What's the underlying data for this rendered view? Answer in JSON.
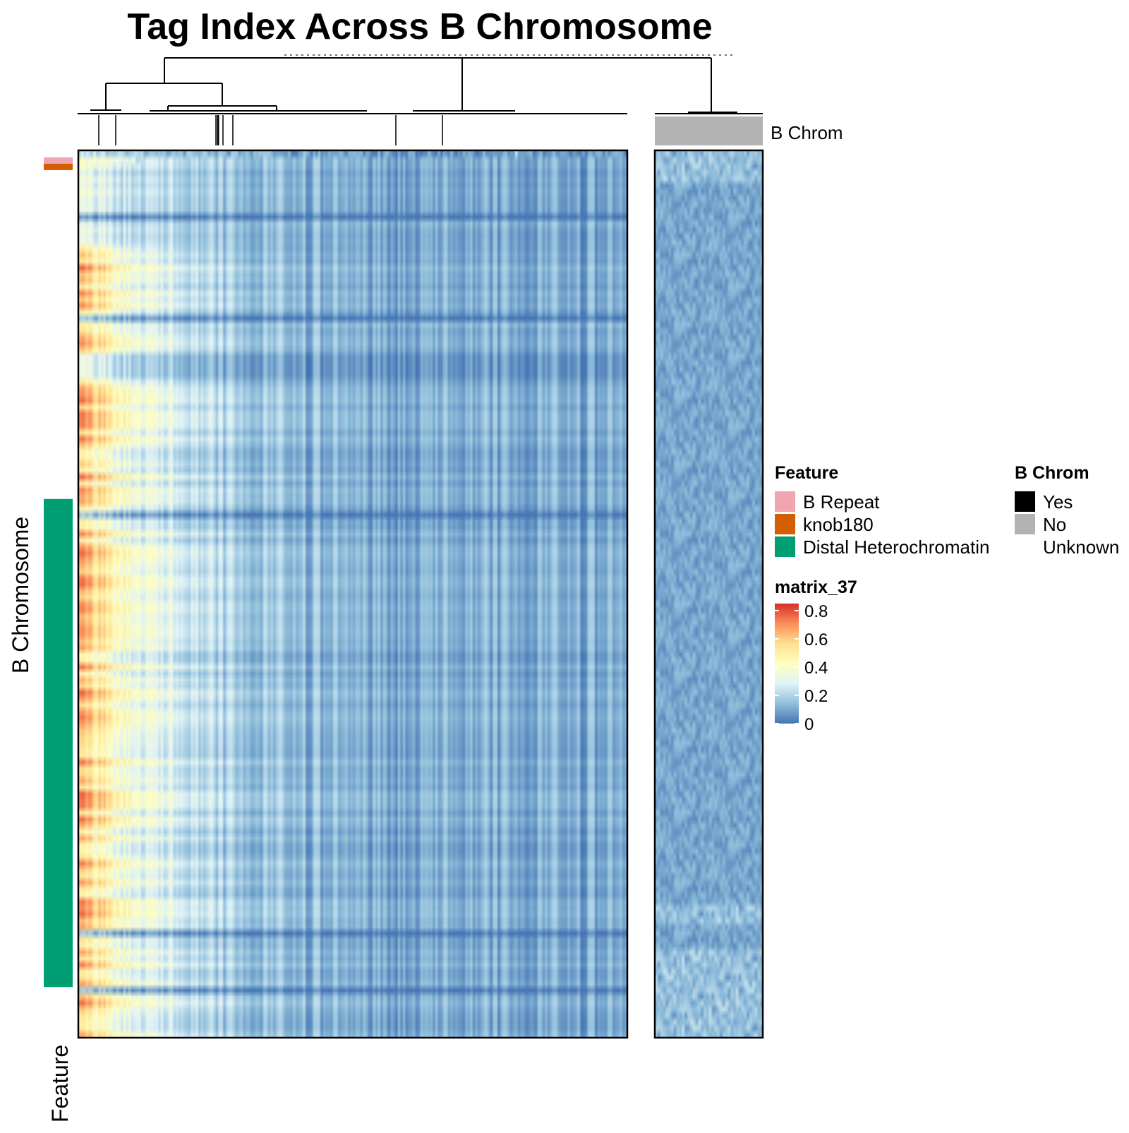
{
  "chart_data": {
    "type": "heatmap",
    "title": "Tag Index Across B Chromosome",
    "row_title": "B Chromosome",
    "row_annotation_name": "Feature",
    "column_annotation_name": "B Chrom",
    "feature_legend": {
      "title": "Feature",
      "entries": [
        {
          "label": "B Repeat",
          "color": "#F0A5B0"
        },
        {
          "label": "knob180",
          "color": "#D55E00"
        },
        {
          "label": "Distal Heterochromatin",
          "color": "#009E73"
        }
      ]
    },
    "bchrom_legend": {
      "title": "B Chrom",
      "entries": [
        {
          "label": "Yes",
          "color": "#000000"
        },
        {
          "label": "No",
          "color": "#B3B3B3"
        },
        {
          "label": "Unknown",
          "color": "#FFFFFF"
        }
      ]
    },
    "color_scale": {
      "title": "matrix_37",
      "ticks": [
        0.8,
        0.6,
        0.4,
        0.2,
        0
      ],
      "range": [
        0,
        0.85
      ],
      "colors": [
        "#4575B4",
        "#91BFDB",
        "#E0F3F8",
        "#FFFFBF",
        "#FEE090",
        "#FC8D59",
        "#D73027"
      ]
    },
    "panels": [
      {
        "name": "left",
        "b_chrom": "Yes",
        "column_count": 220
      },
      {
        "name": "right",
        "b_chrom": "No",
        "column_count": 40
      }
    ],
    "row_count": 140,
    "feature_row_blocks": [
      {
        "feature": "B Repeat",
        "row_start": 1,
        "row_end": 1
      },
      {
        "feature": "knob180",
        "row_start": 2,
        "row_end": 2
      },
      {
        "feature": "Distal Heterochromatin",
        "row_start": 56,
        "row_end": 132
      }
    ]
  }
}
